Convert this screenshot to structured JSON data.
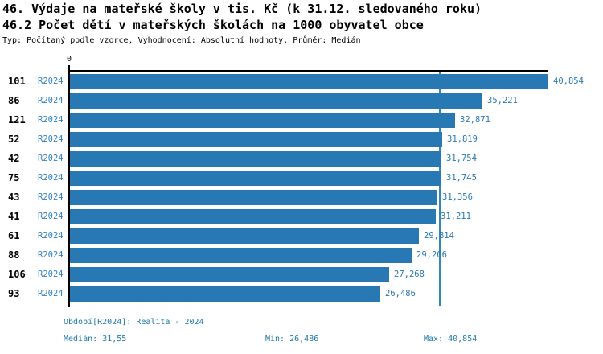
{
  "title_line1": "46. Výdaje na mateřské školy v tis. Kč (k 31.12. sledovaného roku)",
  "title_line2": "46.2 Počet dětí v mateřských školách na 1000 obyvatel obce",
  "subtitle": "Typ: Počítaný podle vzorce, Vyhodnocení: Absolutní hodnoty, Průměr: Medián",
  "axis": {
    "zero_label": "0"
  },
  "colors": {
    "bar": "#2878b4",
    "value_text": "#2878b4",
    "period_link": "#3281c4",
    "median_line": "#3187be",
    "axis": "#000000",
    "footer_text": "#1e78a8"
  },
  "chart_data": {
    "type": "bar",
    "orientation": "horizontal",
    "title": "46. Výdaje na mateřské školy v tis. Kč (k 31.12. sledovaného roku)",
    "subtitle": "46.2 Počet dětí v mateřských školách na 1000 obyvatel obce",
    "categories": [
      "101",
      "86",
      "121",
      "52",
      "42",
      "75",
      "43",
      "41",
      "61",
      "88",
      "106",
      "93"
    ],
    "period_label": "R2024",
    "values": [
      40854,
      35221,
      32871,
      31819,
      31754,
      31745,
      31356,
      31211,
      29814,
      29206,
      27268,
      26486
    ],
    "value_labels": [
      "40,854",
      "35,221",
      "32,871",
      "31,819",
      "31,754",
      "31,745",
      "31,356",
      "31,211",
      "29,814",
      "29,206",
      "27,268",
      "26,486"
    ],
    "xlim": [
      0,
      40854
    ],
    "median_line_value": 31550,
    "grid": false,
    "legend": false
  },
  "footer": {
    "period": "Období[R2024]: Realita - 2024",
    "median": {
      "label": "Medián:",
      "value": "31,55"
    },
    "min": {
      "label": "Min:",
      "value": "26,486"
    },
    "max": {
      "label": "Max:",
      "value": "40,854"
    }
  }
}
